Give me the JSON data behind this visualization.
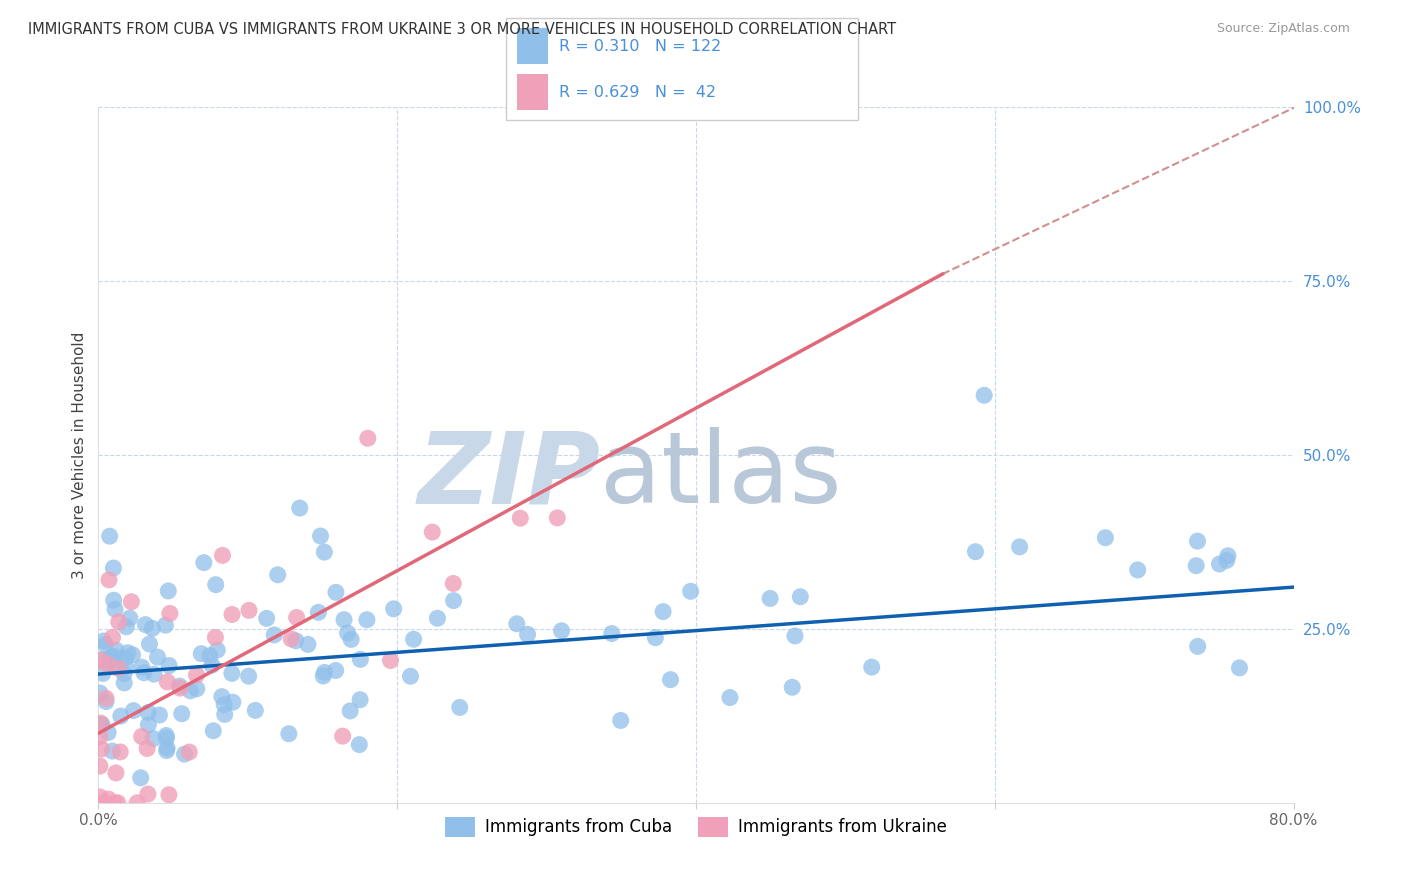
{
  "title": "IMMIGRANTS FROM CUBA VS IMMIGRANTS FROM UKRAINE 3 OR MORE VEHICLES IN HOUSEHOLD CORRELATION CHART",
  "source": "Source: ZipAtlas.com",
  "ylabel_left": "3 or more Vehicles in Household",
  "legend_labels": [
    "Immigrants from Cuba",
    "Immigrants from Ukraine"
  ],
  "legend_R": [
    0.31,
    0.629
  ],
  "legend_N": [
    122,
    42
  ],
  "xlim": [
    0.0,
    0.8
  ],
  "ylim": [
    0.0,
    1.0
  ],
  "yticks_right": [
    0.0,
    0.25,
    0.5,
    0.75,
    1.0
  ],
  "ytick_right_labels": [
    "",
    "25.0%",
    "50.0%",
    "75.0%",
    "100.0%"
  ],
  "color_cuba": "#90c0ea",
  "color_ukraine": "#f0a0b8",
  "color_line_cuba": "#1060b0",
  "color_line_ukraine": "#e06878",
  "color_line_dashed": "#d09090",
  "watermark_zip": "ZIP",
  "watermark_atlas": "atlas",
  "watermark_color_zip": "#c8d8e8",
  "watermark_color_atlas": "#b8c8d8",
  "grid_color": "#c8d8e8",
  "background_color": "#ffffff",
  "cuba_line_x": [
    0.0,
    0.8
  ],
  "cuba_line_y": [
    0.185,
    0.31
  ],
  "ukraine_line_x": [
    0.0,
    0.565
  ],
  "ukraine_line_y": [
    0.1,
    0.76
  ],
  "dashed_line_x": [
    0.565,
    0.88
  ],
  "dashed_line_y": [
    0.76,
    1.08
  ]
}
